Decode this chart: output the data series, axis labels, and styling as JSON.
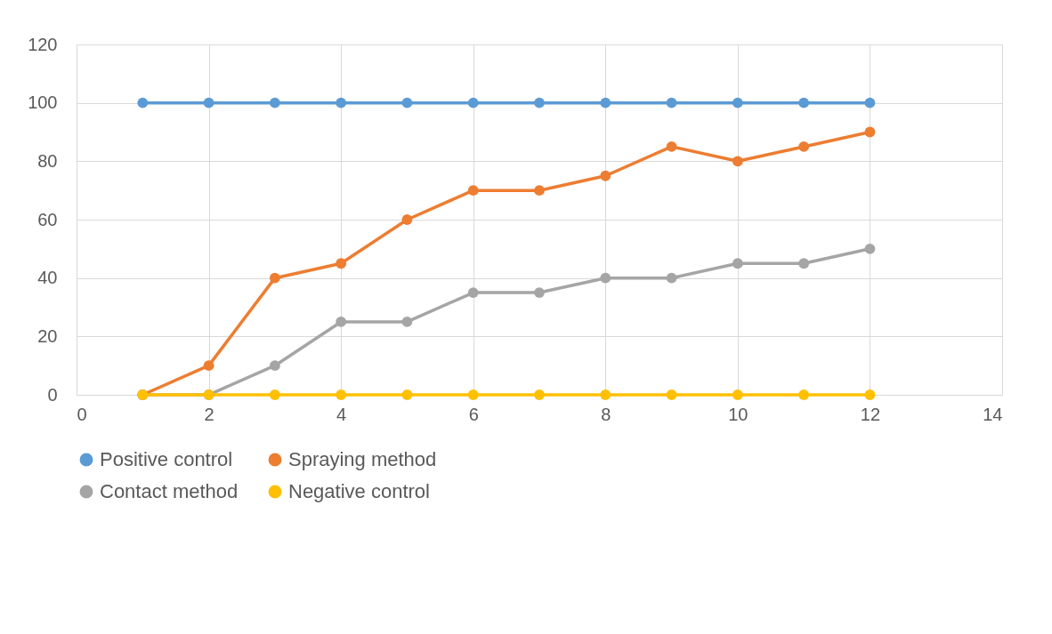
{
  "chart_data": {
    "type": "line",
    "x": [
      1,
      2,
      3,
      4,
      5,
      6,
      7,
      8,
      9,
      10,
      11,
      12
    ],
    "series": [
      {
        "name": "Positive control",
        "color": "#5b9bd5",
        "values": [
          100,
          100,
          100,
          100,
          100,
          100,
          100,
          100,
          100,
          100,
          100,
          100
        ]
      },
      {
        "name": "Spraying method",
        "color": "#ed7d31",
        "values": [
          0,
          10,
          40,
          45,
          60,
          70,
          70,
          75,
          85,
          80,
          85,
          90
        ]
      },
      {
        "name": "Contact method",
        "color": "#a5a5a5",
        "values": [
          0,
          0,
          10,
          25,
          25,
          35,
          35,
          40,
          40,
          45,
          45,
          50
        ]
      },
      {
        "name": "Negative control",
        "color": "#ffc000",
        "values": [
          0,
          0,
          0,
          0,
          0,
          0,
          0,
          0,
          0,
          0,
          0,
          0
        ]
      }
    ],
    "xlim": [
      0,
      14
    ],
    "xticks": [
      0,
      2,
      4,
      6,
      8,
      10,
      12,
      14
    ],
    "ylim": [
      0,
      120
    ],
    "yticks": [
      0,
      20,
      40,
      60,
      80,
      100,
      120
    ],
    "grid": true,
    "legend": "bottom",
    "marker": "circle",
    "line_style": "solid"
  }
}
